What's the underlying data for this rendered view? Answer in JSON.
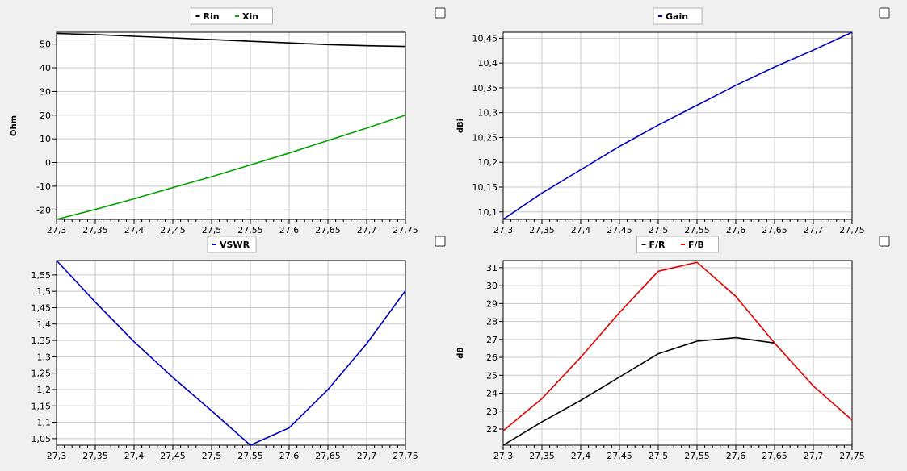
{
  "chart_data": [
    {
      "type": "line",
      "ylabel": "Ohm",
      "xlim": [
        27.3,
        27.75
      ],
      "ylim": [
        -24,
        55
      ],
      "x_ticks": [
        27.3,
        27.35,
        27.4,
        27.45,
        27.5,
        27.55,
        27.6,
        27.65,
        27.7,
        27.75
      ],
      "y_ticks": [
        -20,
        -10,
        0,
        10,
        20,
        30,
        40,
        50
      ],
      "grid": true,
      "legend_position": "top-center",
      "series": [
        {
          "name": "Rin",
          "color": "#000000",
          "x": [
            27.3,
            27.35,
            27.4,
            27.45,
            27.5,
            27.55,
            27.6,
            27.65,
            27.7,
            27.75
          ],
          "y": [
            54.5,
            54.0,
            53.3,
            52.6,
            51.9,
            51.2,
            50.5,
            49.8,
            49.3,
            49.0
          ]
        },
        {
          "name": "Xin",
          "color": "#00a000",
          "x": [
            27.3,
            27.35,
            27.4,
            27.45,
            27.5,
            27.55,
            27.6,
            27.65,
            27.7,
            27.75
          ],
          "y": [
            -24.0,
            -19.8,
            -15.3,
            -10.6,
            -6.0,
            -1.0,
            4.0,
            9.3,
            14.5,
            20.0
          ]
        }
      ]
    },
    {
      "type": "line",
      "ylabel": "dBi",
      "xlim": [
        27.3,
        27.75
      ],
      "ylim": [
        10.085,
        10.462
      ],
      "x_ticks": [
        27.3,
        27.35,
        27.4,
        27.45,
        27.5,
        27.55,
        27.6,
        27.65,
        27.7,
        27.75
      ],
      "y_ticks": [
        10.1,
        10.15,
        10.2,
        10.25,
        10.3,
        10.35,
        10.4,
        10.45
      ],
      "grid": true,
      "legend_position": "top-center",
      "series": [
        {
          "name": "Gain",
          "color": "#0000c0",
          "x": [
            27.3,
            27.35,
            27.4,
            27.45,
            27.5,
            27.55,
            27.6,
            27.65,
            27.7,
            27.75
          ],
          "y": [
            10.085,
            10.138,
            10.185,
            10.232,
            10.275,
            10.315,
            10.355,
            10.392,
            10.426,
            10.462
          ]
        }
      ]
    },
    {
      "type": "line",
      "ylabel": "",
      "xlim": [
        27.3,
        27.75
      ],
      "ylim": [
        1.03,
        1.594
      ],
      "x_ticks": [
        27.3,
        27.35,
        27.4,
        27.45,
        27.5,
        27.55,
        27.6,
        27.65,
        27.7,
        27.75
      ],
      "y_ticks": [
        1.05,
        1.1,
        1.15,
        1.2,
        1.25,
        1.3,
        1.35,
        1.4,
        1.45,
        1.5,
        1.55
      ],
      "grid": true,
      "legend_position": "top-center",
      "series": [
        {
          "name": "VSWR",
          "color": "#0000c0",
          "x": [
            27.3,
            27.35,
            27.4,
            27.45,
            27.5,
            27.55,
            27.6,
            27.65,
            27.7,
            27.75
          ],
          "y": [
            1.594,
            1.467,
            1.346,
            1.237,
            1.135,
            1.03,
            1.083,
            1.2,
            1.34,
            1.502
          ]
        }
      ]
    },
    {
      "type": "line",
      "ylabel": "dB",
      "xlim": [
        27.3,
        27.75
      ],
      "ylim": [
        21.1,
        31.4
      ],
      "x_ticks": [
        27.3,
        27.35,
        27.4,
        27.45,
        27.5,
        27.55,
        27.6,
        27.65,
        27.7,
        27.75
      ],
      "y_ticks": [
        22,
        23,
        24,
        25,
        26,
        27,
        28,
        29,
        30,
        31
      ],
      "grid": true,
      "legend_position": "top-center",
      "series": [
        {
          "name": "F/R",
          "color": "#000000",
          "x": [
            27.3,
            27.35,
            27.4,
            27.45,
            27.5,
            27.55,
            27.6,
            27.65
          ],
          "y": [
            21.1,
            22.4,
            23.6,
            24.9,
            26.2,
            26.9,
            27.1,
            26.8
          ]
        },
        {
          "name": "F/B",
          "color": "#e00000",
          "x": [
            27.3,
            27.35,
            27.4,
            27.45,
            27.5,
            27.55,
            27.6,
            27.65,
            27.7,
            27.75
          ],
          "y": [
            21.9,
            23.7,
            26.0,
            28.5,
            30.8,
            31.3,
            29.4,
            26.8,
            24.4,
            22.5
          ]
        }
      ]
    }
  ],
  "panel_decimal_places": [
    0,
    2,
    2,
    0
  ]
}
